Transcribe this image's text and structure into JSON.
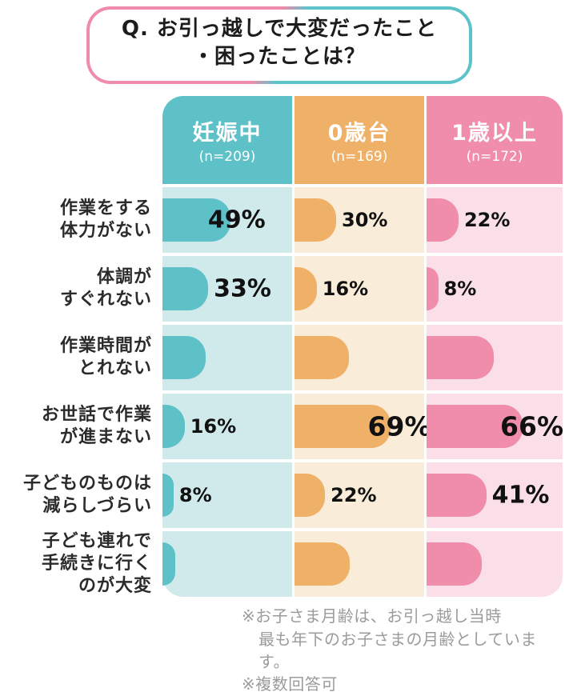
{
  "title": {
    "line1": "Q. お引っ越しで大変だったこと",
    "line2": "・困ったことは？"
  },
  "chart_data": {
    "type": "bar",
    "orientation": "horizontal",
    "title": "Q. お引っ越しで大変だったこと・困ったことは？",
    "value_unit": "%",
    "value_range": [
      0,
      100
    ],
    "legend_position": "column-headers-top",
    "columns": [
      {
        "label": "妊娠中",
        "n_label": "(n=209)",
        "color": "#5fc1c8",
        "bg_color": "#d0eaec"
      },
      {
        "label": "0歳台",
        "n_label": "(n=169)",
        "color": "#eeb167",
        "bg_color": "#f9ecd9"
      },
      {
        "label": "1歳以上",
        "n_label": "(n=172)",
        "color": "#f08dab",
        "bg_color": "#fadfe8"
      }
    ],
    "rows": [
      {
        "label_lines": [
          "作業をする",
          "体力がない"
        ],
        "cells": [
          {
            "value": 49,
            "label": "49%",
            "size": "lg"
          },
          {
            "value": 30,
            "label": "30%",
            "size": "md"
          },
          {
            "value": 22,
            "label": "22%",
            "size": "md"
          }
        ]
      },
      {
        "label_lines": [
          "体調が",
          "すぐれない"
        ],
        "cells": [
          {
            "value": 33,
            "label": "33%",
            "size": "lg"
          },
          {
            "value": 16,
            "label": "16%",
            "size": "md"
          },
          {
            "value": 8,
            "label": "8%",
            "size": "md"
          }
        ]
      },
      {
        "label_lines": [
          "作業時間が",
          "とれない"
        ],
        "cells": [
          {
            "value": 31,
            "label": null
          },
          {
            "value": 39,
            "label": null
          },
          {
            "value": 46,
            "label": null
          }
        ]
      },
      {
        "label_lines": [
          "お世話で作業",
          "が進まない"
        ],
        "cells": [
          {
            "value": 16,
            "label": "16%",
            "size": "md"
          },
          {
            "value": 69,
            "label": "69%",
            "size": "xl"
          },
          {
            "value": 66,
            "label": "66%",
            "size": "xl"
          }
        ]
      },
      {
        "label_lines": [
          "子どものものは",
          "減らしづらい"
        ],
        "cells": [
          {
            "value": 8,
            "label": "8%",
            "size": "md"
          },
          {
            "value": 22,
            "label": "22%",
            "size": "md"
          },
          {
            "value": 41,
            "label": "41%",
            "size": "lg"
          }
        ]
      },
      {
        "label_lines": [
          "子ども連れで",
          "手続きに行く",
          "のが大変"
        ],
        "cells": [
          {
            "value": 9,
            "label": null
          },
          {
            "value": 40,
            "label": null
          },
          {
            "value": 38,
            "label": null
          }
        ]
      }
    ]
  },
  "notes": {
    "line1": "※お子さま月齢は、お引っ越し当時",
    "line2": "最も年下のお子さまの月齢としています。",
    "line3": "※複数回答可"
  },
  "colors": {
    "teal": "#5fc1c8",
    "teal_light": "#d0eaec",
    "orange": "#eeb167",
    "orange_light": "#f9ecd9",
    "pink": "#f08dab",
    "pink_light": "#fadfe8",
    "title_border_pink": "#f08bac",
    "title_border_teal": "#5cc3c8",
    "note_gray": "#9b9b9b"
  }
}
